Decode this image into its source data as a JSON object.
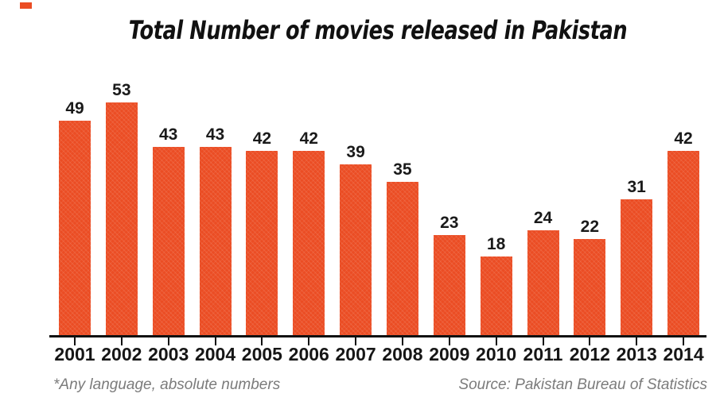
{
  "page": {
    "background": "#ffffff",
    "accent_color": "#EB4D24",
    "text_color": "#161616",
    "muted_color": "#7b7b7b"
  },
  "header": {
    "title": "Total Number of movies released in Pakistan"
  },
  "footer": {
    "footnote": "*Any language, absolute numbers",
    "source": "Source: Pakistan Bureau of Statistics"
  },
  "chart_data": {
    "type": "bar",
    "title": "Total Number of movies released in Pakistan",
    "categories": [
      "2001",
      "2002",
      "2003",
      "2004",
      "2005",
      "2006",
      "2007",
      "2008",
      "2009",
      "2010",
      "2011",
      "2012",
      "2013",
      "2014"
    ],
    "values": [
      49,
      53,
      43,
      43,
      42,
      42,
      39,
      35,
      23,
      18,
      24,
      22,
      31,
      42
    ],
    "xlabel": "",
    "ylabel": "",
    "ylim": [
      0,
      56
    ],
    "bar_color": "#EB4D24",
    "value_labels_shown": true,
    "grid": false,
    "legend": "none"
  }
}
